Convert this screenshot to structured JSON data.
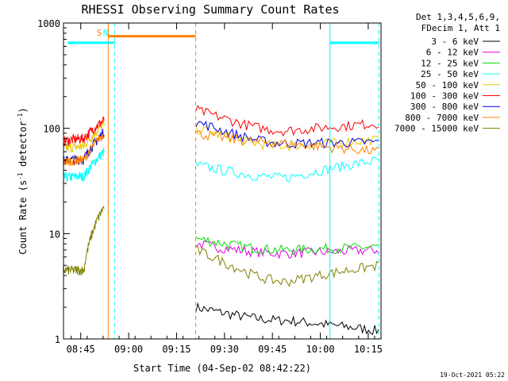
{
  "chart_data": {
    "type": "line",
    "title": "RHESSI Observing Summary Count Rates",
    "xlabel": "Start Time (04-Sep-02 08:42:22)",
    "ylabel": "Count Rate (s",
    "ylabel_sup": "-1",
    "ylabel_mid": " detector",
    "ylabel_sup2": "-1",
    "ylabel_end": ")",
    "yscale": "log",
    "ylim": [
      1,
      1000
    ],
    "xlim_minutes": [
      -2.4,
      97
    ],
    "xticks": [
      {
        "minute": 3,
        "label": "08:45"
      },
      {
        "minute": 18,
        "label": "09:00"
      },
      {
        "minute": 33,
        "label": "09:15"
      },
      {
        "minute": 48,
        "label": "09:30"
      },
      {
        "minute": 63,
        "label": "09:45"
      },
      {
        "minute": 78,
        "label": "10:00"
      },
      {
        "minute": 93,
        "label": "10:15"
      }
    ],
    "yticks": [
      {
        "value": 1,
        "label": "1"
      },
      {
        "value": 10,
        "label": "10"
      },
      {
        "value": 100,
        "label": "100"
      },
      {
        "value": 1000,
        "label": "1000"
      }
    ],
    "legend_header": [
      "Det 1,3,4,5,6,9,",
      "FDecim 1, Att 1"
    ],
    "series": [
      {
        "name": "3 - 6 keV",
        "color": "#000000"
      },
      {
        "name": "6 - 12 keV",
        "color": "#e100e1"
      },
      {
        "name": "12 - 25 keV",
        "color": "#00e000"
      },
      {
        "name": "25 - 50 keV",
        "color": "#00ffff"
      },
      {
        "name": "50 - 100 keV",
        "color": "#e8c800"
      },
      {
        "name": "100 - 300 keV",
        "color": "#ff0000"
      },
      {
        "name": "300 - 800 keV",
        "color": "#0000e0"
      },
      {
        "name": "800 - 7000 keV",
        "color": "#ff8000"
      },
      {
        "name": "7000 - 15000 keV",
        "color": "#808000"
      }
    ],
    "segments": [
      {
        "start": -2.4,
        "end": 10.3,
        "levels": {
          "100 - 300 keV": [
            75,
            80,
            120
          ],
          "50 - 100 keV": [
            65,
            67,
            110
          ],
          "300 - 800 keV": [
            49,
            51,
            92
          ],
          "800 - 7000 keV": [
            48,
            50,
            90
          ],
          "25 - 50 keV": [
            34,
            35,
            60
          ],
          "7000 - 15000 keV": [
            4.5,
            4.5,
            18
          ]
        }
      },
      {
        "start": 39.0,
        "end": 96.3,
        "levels": {
          "100 - 300 keV": [
            150,
            95,
            112
          ],
          "300 - 800 keV": [
            115,
            72,
            74
          ],
          "50 - 100 keV": [
            100,
            68,
            78
          ],
          "800 - 7000 keV": [
            90,
            72,
            60
          ],
          "25 - 50 keV": [
            45,
            34,
            50
          ],
          "12 - 25 keV": [
            9,
            7,
            7.5
          ],
          "6 - 12 keV": [
            8,
            6.5,
            7
          ],
          "7000 - 15000 keV": [
            7,
            3.5,
            5
          ],
          "3 - 6 keV": [
            2,
            1.5,
            1.2
          ]
        }
      }
    ],
    "markers": [
      {
        "label": "S",
        "color": "#ff8000",
        "minute": 11.6,
        "style": "solid"
      },
      {
        "label": "N",
        "color": "#00ffff",
        "minute": 13.6,
        "style": "dashed"
      },
      {
        "label": "",
        "color": "#ff8000",
        "minute": 39.0,
        "style": "dashed"
      },
      {
        "label": "",
        "color": "#00ffff",
        "minute": 81.0,
        "style": "solid"
      },
      {
        "label": "",
        "color": "#00ffff",
        "minute": 96.3,
        "style": "dashed"
      }
    ],
    "bars": [
      {
        "color": "#00ffff",
        "start": -1.0,
        "end": 13.6,
        "value": 650
      },
      {
        "color": "#ff8000",
        "start": 11.6,
        "end": 39.0,
        "value": 750
      },
      {
        "color": "#00ffff",
        "start": 81.0,
        "end": 96.3,
        "value": 650
      }
    ]
  },
  "footer": {
    "timestamp": "19-Oct-2021 05:22"
  }
}
